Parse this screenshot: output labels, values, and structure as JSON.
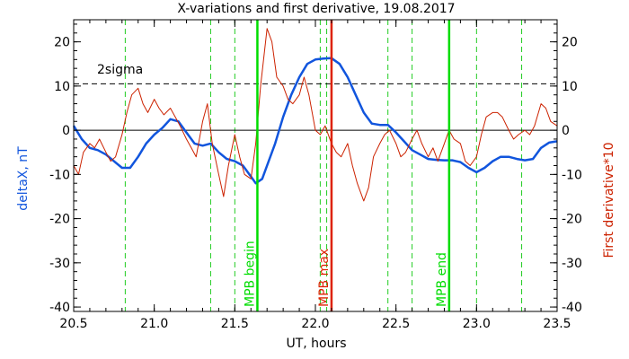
{
  "chart_data": {
    "type": "line",
    "title": "X-variations and first derivative, 19.08.2017",
    "xlabel": "UT, hours",
    "ylabel_left": "deltaX, nT",
    "ylabel_right": "First derivative*10",
    "xlim": [
      20.5,
      23.5
    ],
    "ylim": [
      -41,
      25
    ],
    "x_ticks": [
      "20.5",
      "21.0",
      "21.5",
      "22.0",
      "22.5",
      "23.0",
      "23.5"
    ],
    "y_ticks": [
      "20",
      "10",
      "0",
      "-10",
      "-20",
      "-30",
      "-40"
    ],
    "sigma_label": "2sigma",
    "sigma_level": 10.5,
    "zero_level": 0,
    "dashed_markers_x": [
      20.82,
      21.35,
      21.5,
      22.03,
      22.07,
      22.45,
      22.6,
      23.0,
      23.28
    ],
    "markers": [
      {
        "label": "MPB begin",
        "x": 21.64,
        "color": "#00dd00"
      },
      {
        "label": "MPB max",
        "x": 22.1,
        "color": "#dd2200"
      },
      {
        "label": "MPB end",
        "x": 22.83,
        "color": "#00dd00"
      }
    ],
    "series": [
      {
        "name": "deltaX, nT",
        "color": "#1155dd",
        "x": [
          20.5,
          20.55,
          20.6,
          20.65,
          20.7,
          20.75,
          20.8,
          20.85,
          20.9,
          20.95,
          21.0,
          21.05,
          21.1,
          21.15,
          21.2,
          21.25,
          21.3,
          21.35,
          21.4,
          21.45,
          21.5,
          21.55,
          21.6,
          21.63,
          21.67,
          21.7,
          21.75,
          21.8,
          21.85,
          21.9,
          21.95,
          22.0,
          22.05,
          22.1,
          22.15,
          22.2,
          22.25,
          22.3,
          22.35,
          22.4,
          22.45,
          22.5,
          22.55,
          22.6,
          22.65,
          22.7,
          22.75,
          22.8,
          22.85,
          22.9,
          22.95,
          23.0,
          23.05,
          23.1,
          23.15,
          23.2,
          23.25,
          23.3,
          23.35,
          23.4,
          23.45,
          23.5
        ],
        "values": [
          1,
          -2,
          -4,
          -4.5,
          -5.5,
          -7,
          -8.5,
          -8.5,
          -6,
          -3,
          -1,
          0.5,
          2.5,
          2,
          -0.5,
          -3,
          -3.5,
          -3,
          -5,
          -6.5,
          -7,
          -8,
          -10.5,
          -12,
          -11,
          -8,
          -3,
          3,
          8,
          12,
          15,
          16,
          16.2,
          16.3,
          15,
          12,
          8,
          4,
          1.5,
          1.2,
          1.2,
          -0.5,
          -2.5,
          -4.5,
          -5.5,
          -6.5,
          -6.7,
          -6.8,
          -6.8,
          -7.2,
          -8.5,
          -9.5,
          -8.5,
          -7,
          -6,
          -6,
          -6.5,
          -6.8,
          -6.5,
          -4,
          -2.8,
          -2.5
        ]
      },
      {
        "name": "First derivative*10",
        "color": "#cc2200",
        "x": [
          20.5,
          20.53,
          20.56,
          20.6,
          20.63,
          20.66,
          20.7,
          20.73,
          20.76,
          20.8,
          20.83,
          20.86,
          20.9,
          20.93,
          20.96,
          21.0,
          21.03,
          21.06,
          21.1,
          21.13,
          21.16,
          21.2,
          21.23,
          21.26,
          21.3,
          21.33,
          21.36,
          21.4,
          21.43,
          21.46,
          21.5,
          21.53,
          21.56,
          21.6,
          21.63,
          21.66,
          21.7,
          21.73,
          21.76,
          21.8,
          21.83,
          21.86,
          21.9,
          21.93,
          21.96,
          22.0,
          22.03,
          22.06,
          22.1,
          22.13,
          22.16,
          22.2,
          22.23,
          22.26,
          22.3,
          22.33,
          22.36,
          22.4,
          22.43,
          22.46,
          22.5,
          22.53,
          22.56,
          22.6,
          22.63,
          22.66,
          22.7,
          22.73,
          22.76,
          22.8,
          22.83,
          22.86,
          22.9,
          22.93,
          22.96,
          23.0,
          23.03,
          23.06,
          23.1,
          23.13,
          23.16,
          23.2,
          23.23,
          23.26,
          23.3,
          23.33,
          23.36,
          23.4,
          23.43,
          23.46,
          23.5
        ],
        "values": [
          -8,
          -10,
          -5,
          -3,
          -4,
          -2,
          -5,
          -7,
          -6,
          -1,
          4,
          8,
          9.5,
          6,
          4,
          7,
          5,
          3.5,
          5,
          3,
          1,
          -2,
          -4,
          -6,
          2,
          6,
          -3,
          -10,
          -15,
          -8,
          -1,
          -6,
          -10,
          -11,
          -3,
          10,
          23,
          20,
          12,
          10,
          7,
          6,
          8,
          12,
          8,
          0,
          -1,
          1,
          -3,
          -5,
          -6,
          -3,
          -8,
          -12,
          -16,
          -13,
          -6,
          -3,
          -1,
          0,
          -3,
          -6,
          -5,
          -2,
          0,
          -3,
          -6,
          -4,
          -7,
          -3,
          0,
          -2,
          -3,
          -7,
          -8,
          -6,
          -1,
          3,
          4,
          4,
          3,
          0,
          -2,
          -1,
          0,
          -1,
          1,
          6,
          5,
          2,
          1
        ]
      }
    ]
  }
}
